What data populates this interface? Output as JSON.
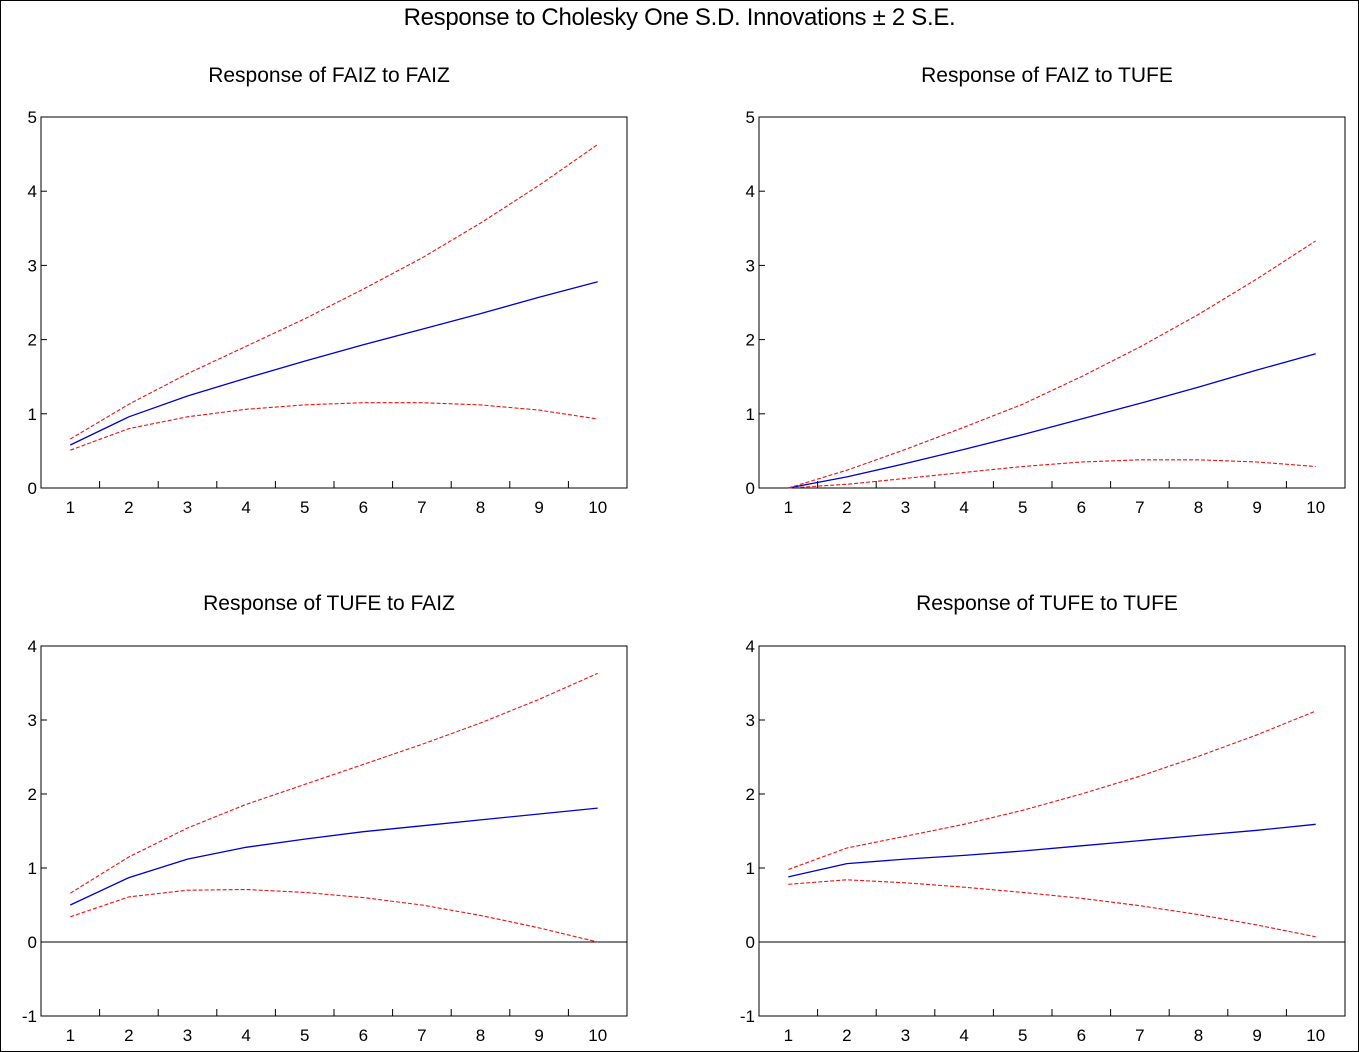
{
  "title": "Response to Cholesky One S.D. Innovations ± 2 S.E.",
  "colors": {
    "response": "#0000cc",
    "band": "#ee1111",
    "axis": "#000000",
    "background": "#ffffff"
  },
  "chart_data": [
    {
      "type": "line",
      "title": "Response of FAIZ to FAIZ",
      "x": [
        1,
        2,
        3,
        4,
        5,
        6,
        7,
        8,
        9,
        10
      ],
      "ylim": [
        0,
        5
      ],
      "yticks": [
        0,
        1,
        2,
        3,
        4,
        5
      ],
      "zero_line": false,
      "series": [
        {
          "role": "response",
          "values": [
            0.58,
            0.96,
            1.24,
            1.48,
            1.71,
            1.93,
            2.14,
            2.35,
            2.57,
            2.78
          ]
        },
        {
          "role": "upper",
          "values": [
            0.66,
            1.13,
            1.54,
            1.91,
            2.28,
            2.68,
            3.1,
            3.57,
            4.08,
            4.63
          ]
        },
        {
          "role": "lower",
          "values": [
            0.51,
            0.8,
            0.96,
            1.06,
            1.12,
            1.15,
            1.15,
            1.12,
            1.05,
            0.93
          ]
        }
      ]
    },
    {
      "type": "line",
      "title": "Response of FAIZ to TUFE",
      "x": [
        1,
        2,
        3,
        4,
        5,
        6,
        7,
        8,
        9,
        10
      ],
      "ylim": [
        0,
        5
      ],
      "yticks": [
        0,
        1,
        2,
        3,
        4,
        5
      ],
      "zero_line": false,
      "series": [
        {
          "role": "response",
          "values": [
            0.0,
            0.15,
            0.33,
            0.52,
            0.72,
            0.93,
            1.14,
            1.36,
            1.59,
            1.81
          ]
        },
        {
          "role": "upper",
          "values": [
            0.0,
            0.24,
            0.52,
            0.82,
            1.13,
            1.5,
            1.9,
            2.34,
            2.82,
            3.33
          ]
        },
        {
          "role": "lower",
          "values": [
            0.0,
            0.05,
            0.13,
            0.21,
            0.29,
            0.35,
            0.38,
            0.38,
            0.35,
            0.29
          ]
        }
      ]
    },
    {
      "type": "line",
      "title": "Response of TUFE to FAIZ",
      "x": [
        1,
        2,
        3,
        4,
        5,
        6,
        7,
        8,
        9,
        10
      ],
      "ylim": [
        -1,
        4
      ],
      "yticks": [
        -1,
        0,
        1,
        2,
        3,
        4
      ],
      "zero_line": true,
      "series": [
        {
          "role": "response",
          "values": [
            0.5,
            0.87,
            1.12,
            1.28,
            1.39,
            1.49,
            1.57,
            1.65,
            1.73,
            1.81
          ]
        },
        {
          "role": "upper",
          "values": [
            0.66,
            1.15,
            1.54,
            1.86,
            2.13,
            2.4,
            2.67,
            2.96,
            3.28,
            3.63
          ]
        },
        {
          "role": "lower",
          "values": [
            0.34,
            0.61,
            0.7,
            0.71,
            0.67,
            0.6,
            0.5,
            0.36,
            0.19,
            0.0
          ]
        }
      ]
    },
    {
      "type": "line",
      "title": "Response of TUFE to TUFE",
      "x": [
        1,
        2,
        3,
        4,
        5,
        6,
        7,
        8,
        9,
        10
      ],
      "ylim": [
        -1,
        4
      ],
      "yticks": [
        -1,
        0,
        1,
        2,
        3,
        4
      ],
      "zero_line": true,
      "series": [
        {
          "role": "response",
          "values": [
            0.88,
            1.06,
            1.12,
            1.17,
            1.23,
            1.3,
            1.37,
            1.44,
            1.51,
            1.59
          ]
        },
        {
          "role": "upper",
          "values": [
            0.98,
            1.27,
            1.43,
            1.59,
            1.78,
            2.0,
            2.24,
            2.51,
            2.8,
            3.12
          ]
        },
        {
          "role": "lower",
          "values": [
            0.78,
            0.84,
            0.8,
            0.74,
            0.67,
            0.59,
            0.49,
            0.37,
            0.23,
            0.07
          ]
        }
      ]
    }
  ]
}
